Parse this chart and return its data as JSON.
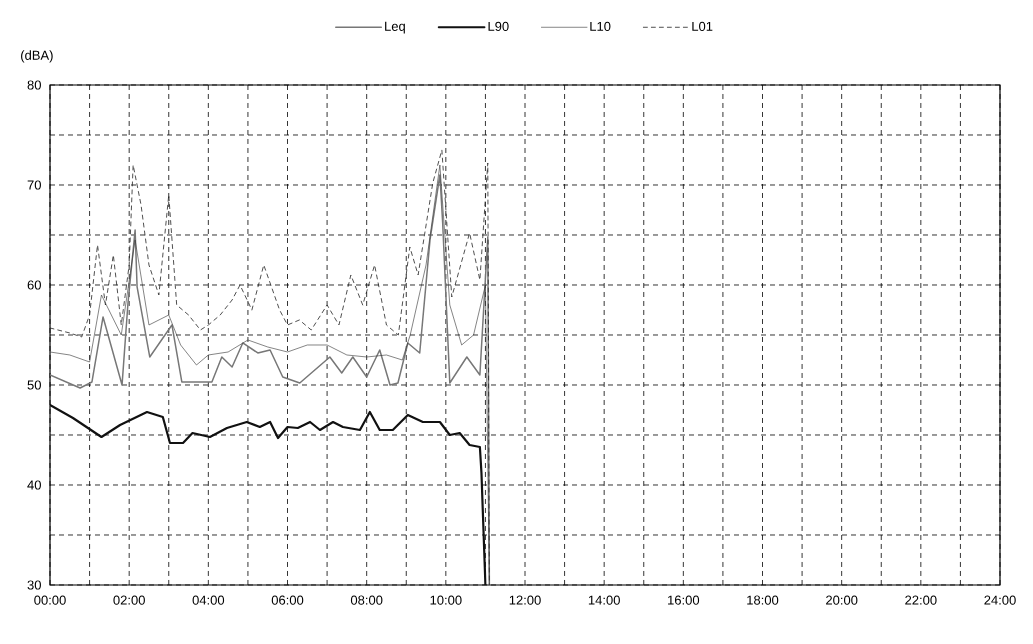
{
  "chart_data": {
    "type": "line",
    "ylabel": "(dBA)",
    "grid": true,
    "legend": "top",
    "marker": "none",
    "xlim": [
      0,
      24
    ],
    "ylim": [
      30,
      80
    ],
    "xticks": [
      {
        "value": 0,
        "label": "00:00"
      },
      {
        "value": 1,
        "label": null
      },
      {
        "value": 2,
        "label": "02:00"
      },
      {
        "value": 3,
        "label": null
      },
      {
        "value": 4,
        "label": "04:00"
      },
      {
        "value": 5,
        "label": null
      },
      {
        "value": 6,
        "label": "06:00"
      },
      {
        "value": 7,
        "label": null
      },
      {
        "value": 8,
        "label": "08:00"
      },
      {
        "value": 9,
        "label": null
      },
      {
        "value": 10,
        "label": "10:00"
      },
      {
        "value": 11,
        "label": null
      },
      {
        "value": 12,
        "label": "12:00"
      },
      {
        "value": 13,
        "label": null
      },
      {
        "value": 14,
        "label": "14:00"
      },
      {
        "value": 15,
        "label": null
      },
      {
        "value": 16,
        "label": "16:00"
      },
      {
        "value": 17,
        "label": null
      },
      {
        "value": 18,
        "label": "18:00"
      },
      {
        "value": 19,
        "label": null
      },
      {
        "value": 20,
        "label": "20:00"
      },
      {
        "value": 21,
        "label": null
      },
      {
        "value": 22,
        "label": "22:00"
      },
      {
        "value": 23,
        "label": null
      },
      {
        "value": 24,
        "label": "24:00"
      }
    ],
    "yticks": [
      30,
      {
        "value": 35,
        "label": null
      },
      40,
      {
        "value": 45,
        "label": null
      },
      50,
      {
        "value": 55,
        "label": null
      },
      60,
      {
        "value": 65,
        "label": null
      },
      70,
      {
        "value": 75,
        "label": null
      },
      80
    ],
    "series": [
      {
        "name": "Leq",
        "color": "#777777",
        "line_style": "solid",
        "x": [
          0,
          0.76,
          1.06,
          1.34,
          1.82,
          1.97,
          2.15,
          2.2,
          2.52,
          3.08,
          3.33,
          4.09,
          4.34,
          4.6,
          4.87,
          5.25,
          5.56,
          5.88,
          6.31,
          7.07,
          7.37,
          7.65,
          8.0,
          8.33,
          8.59,
          8.79,
          9.04,
          9.34,
          9.6,
          9.85,
          9.92,
          10.1,
          10.53,
          10.86,
          11.06,
          11.1
        ],
        "values": [
          51.0,
          49.7,
          50.3,
          56.8,
          50.0,
          58.2,
          65.5,
          59.8,
          52.8,
          56.0,
          50.3,
          50.3,
          52.8,
          51.8,
          54.2,
          53.2,
          53.5,
          50.8,
          50.2,
          52.8,
          51.2,
          52.8,
          50.8,
          53.5,
          50.0,
          50.2,
          54.2,
          53.2,
          64.5,
          71.0,
          66.2,
          50.2,
          52.8,
          51.0,
          64.8,
          30
        ]
      },
      {
        "name": "L90",
        "color": "#111111",
        "line_style": "solid",
        "x": [
          0,
          0.58,
          1.3,
          1.77,
          2.45,
          2.85,
          3.03,
          3.36,
          3.6,
          4.04,
          4.47,
          4.97,
          5.3,
          5.56,
          5.76,
          6.0,
          6.26,
          6.57,
          6.82,
          7.15,
          7.4,
          7.83,
          8.08,
          8.33,
          8.66,
          9.04,
          9.42,
          9.85,
          10.1,
          10.35,
          10.6,
          10.86,
          10.9,
          11.0
        ],
        "values": [
          48.0,
          46.7,
          44.8,
          46.0,
          47.3,
          46.8,
          44.2,
          44.2,
          45.2,
          44.8,
          45.7,
          46.3,
          45.8,
          46.3,
          44.7,
          45.8,
          45.7,
          46.3,
          45.5,
          46.3,
          45.8,
          45.5,
          47.3,
          45.5,
          45.5,
          47.0,
          46.3,
          46.3,
          45.0,
          45.2,
          44.0,
          43.8,
          41.2,
          30
        ]
      },
      {
        "name": "L10",
        "color": "#333333",
        "line_style": "solid",
        "x": [
          0,
          0.5,
          1.0,
          1.3,
          1.8,
          2.15,
          2.5,
          3.0,
          3.3,
          3.7,
          4.0,
          4.5,
          5.0,
          5.5,
          6.0,
          6.5,
          7.0,
          7.5,
          8.0,
          8.5,
          8.9,
          9.1,
          9.5,
          9.85,
          10.1,
          10.4,
          10.7,
          11.0,
          11.1
        ],
        "values": [
          53.3,
          53.0,
          52.3,
          59.0,
          55.0,
          64.5,
          56.0,
          57.0,
          54.0,
          52.0,
          53.0,
          53.3,
          54.5,
          53.8,
          53.3,
          54.0,
          54.0,
          53.0,
          52.8,
          53.0,
          52.5,
          55.0,
          62.0,
          72.0,
          58.0,
          54.0,
          55.0,
          60.0,
          30
        ]
      },
      {
        "name": "L01",
        "color": "#222222",
        "line_style": "dashed",
        "x": [
          0,
          0.5,
          0.8,
          1.0,
          1.2,
          1.4,
          1.6,
          1.8,
          2.0,
          2.1,
          2.3,
          2.5,
          2.75,
          3.0,
          3.2,
          3.5,
          3.8,
          4.0,
          4.3,
          4.6,
          4.8,
          5.1,
          5.4,
          5.8,
          6.0,
          6.3,
          6.6,
          7.0,
          7.3,
          7.6,
          7.9,
          8.2,
          8.5,
          8.8,
          9.09,
          9.3,
          9.67,
          9.9,
          10.15,
          10.6,
          10.86,
          11.06,
          11.1
        ],
        "values": [
          55.7,
          55.2,
          54.8,
          57.0,
          64.0,
          58.0,
          63.0,
          56.0,
          62.0,
          72.0,
          68.0,
          62.0,
          59.0,
          69.0,
          58.0,
          57.0,
          55.5,
          56.0,
          57.0,
          58.5,
          60.0,
          57.5,
          62.0,
          57.5,
          56.0,
          56.5,
          55.5,
          58.0,
          56.0,
          61.0,
          58.0,
          62.0,
          56.0,
          55.0,
          63.8,
          61.0,
          70.2,
          73.5,
          58.8,
          65.2,
          60.5,
          72.2,
          30
        ]
      }
    ]
  }
}
